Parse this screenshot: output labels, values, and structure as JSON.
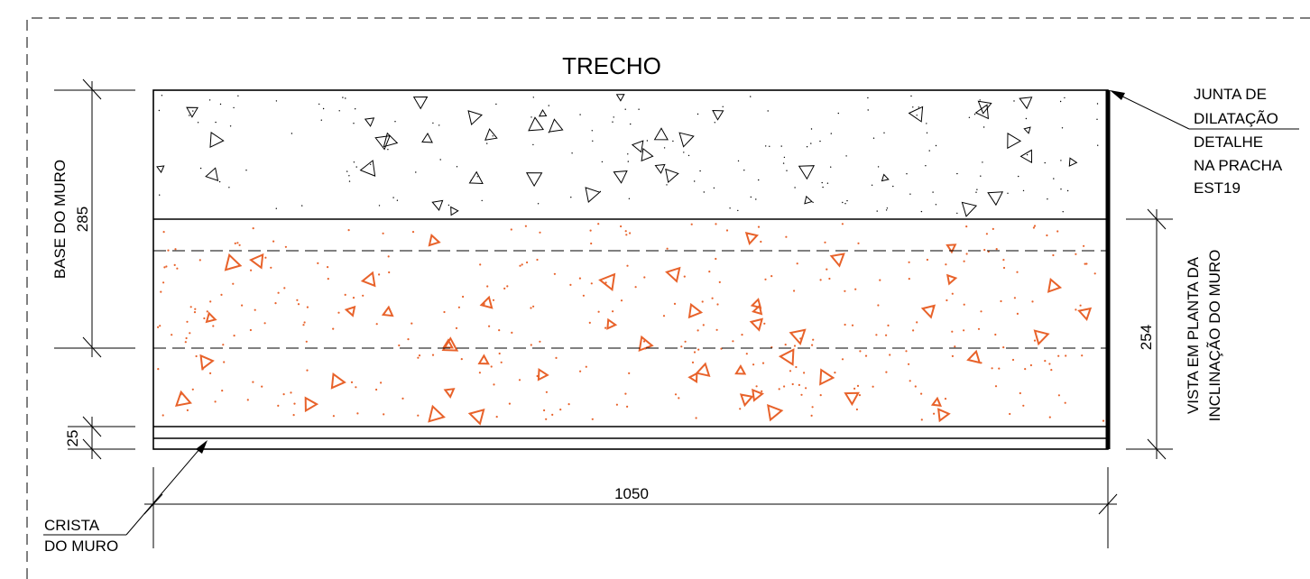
{
  "title": "TRECHO",
  "dimensions": {
    "width": "1050",
    "base": "285",
    "crest": "25",
    "inclination": "254"
  },
  "labels": {
    "base_do_muro": "BASE DO MURO",
    "vista_line1": "VISTA EM PLANTA DA",
    "vista_line2": "INCLINAÇÃO DO MURO",
    "crista_line1": "CRISTA",
    "crista_line2": "DO MURO",
    "junta_line1": "JUNTA DE",
    "junta_line2": "DILATAÇÃO",
    "junta_line3": "DETALHE",
    "junta_line4": "NA PRACHA",
    "junta_line5": "EST19"
  },
  "colors": {
    "line": "#000000",
    "hatch_inclined": "#e8622a",
    "hatch_base": "#000000"
  }
}
